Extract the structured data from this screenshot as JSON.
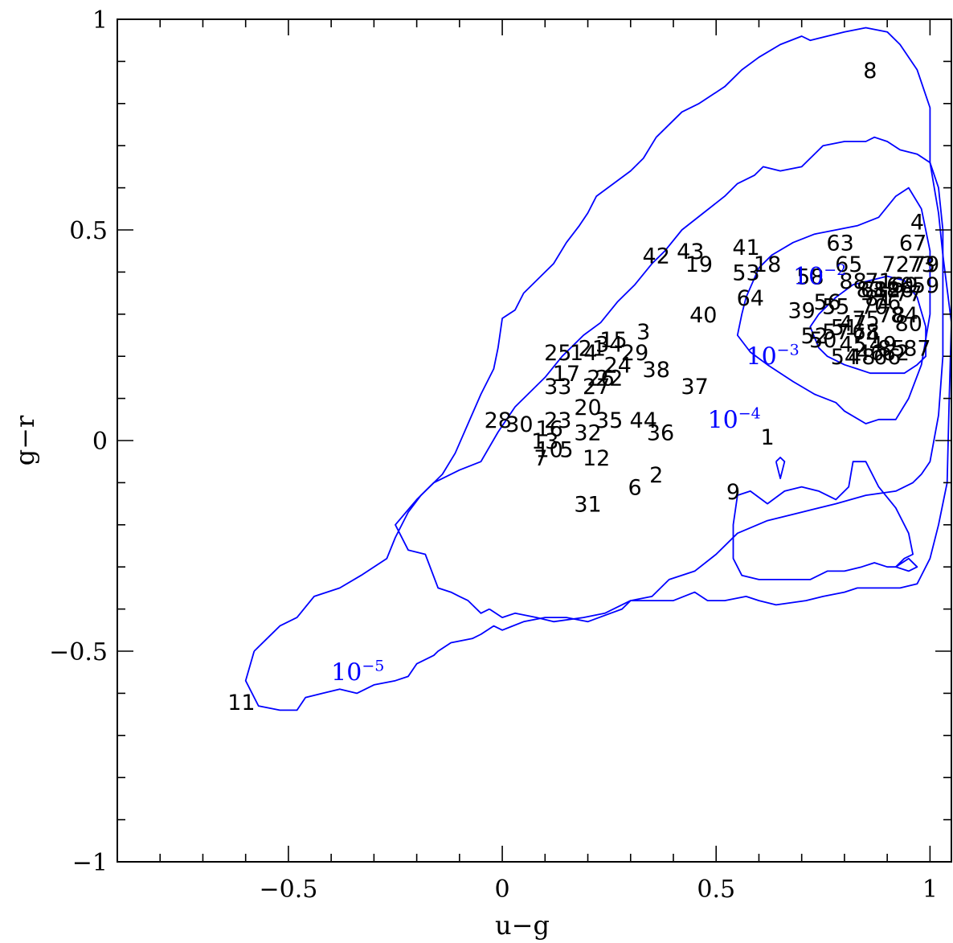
{
  "chart_data": {
    "type": "scatter",
    "xlabel": "u−g",
    "ylabel": "g−r",
    "xlim": [
      -0.9,
      1.05
    ],
    "ylim": [
      -1,
      1
    ],
    "xticks_major": [
      -0.5,
      0,
      0.5,
      1
    ],
    "xtick_labels": [
      "−0.5",
      "0",
      "0.5",
      "1"
    ],
    "yticks_major": [
      -1,
      -0.5,
      0,
      0.5,
      1
    ],
    "ytick_labels": [
      "−1",
      "−0.5",
      "0",
      "0.5",
      "1"
    ],
    "minor_tick_step": 0.1,
    "grid": false,
    "legend": "none",
    "contour_color": "#0000ff",
    "point_color": "#000000",
    "points": [
      {
        "label": "1",
        "x": 0.62,
        "y": 0.01
      },
      {
        "label": "2",
        "x": 0.36,
        "y": -0.08
      },
      {
        "label": "3",
        "x": 0.33,
        "y": 0.26
      },
      {
        "label": "4",
        "x": 0.97,
        "y": 0.52
      },
      {
        "label": "5",
        "x": 0.15,
        "y": -0.02
      },
      {
        "label": "6",
        "x": 0.31,
        "y": -0.11
      },
      {
        "label": "7",
        "x": 0.09,
        "y": -0.04
      },
      {
        "label": "8",
        "x": 0.86,
        "y": 0.88
      },
      {
        "label": "9",
        "x": 0.54,
        "y": -0.12
      },
      {
        "label": "10",
        "x": 0.11,
        "y": -0.02
      },
      {
        "label": "11",
        "x": -0.61,
        "y": -0.62
      },
      {
        "label": "12",
        "x": 0.22,
        "y": -0.04
      },
      {
        "label": "13",
        "x": 0.1,
        "y": 0.0
      },
      {
        "label": "14",
        "x": 0.19,
        "y": 0.21
      },
      {
        "label": "15",
        "x": 0.26,
        "y": 0.24
      },
      {
        "label": "16",
        "x": 0.11,
        "y": 0.03
      },
      {
        "label": "17",
        "x": 0.15,
        "y": 0.16
      },
      {
        "label": "18",
        "x": 0.62,
        "y": 0.42
      },
      {
        "label": "19",
        "x": 0.46,
        "y": 0.42
      },
      {
        "label": "20",
        "x": 0.2,
        "y": 0.08
      },
      {
        "label": "21",
        "x": 0.21,
        "y": 0.22
      },
      {
        "label": "22",
        "x": 0.25,
        "y": 0.15
      },
      {
        "label": "23",
        "x": 0.13,
        "y": 0.05
      },
      {
        "label": "24",
        "x": 0.27,
        "y": 0.18
      },
      {
        "label": "25",
        "x": 0.13,
        "y": 0.21
      },
      {
        "label": "26",
        "x": 0.23,
        "y": 0.15
      },
      {
        "label": "27",
        "x": 0.22,
        "y": 0.13
      },
      {
        "label": "28",
        "x": -0.01,
        "y": 0.05
      },
      {
        "label": "29",
        "x": 0.31,
        "y": 0.21
      },
      {
        "label": "30",
        "x": 0.04,
        "y": 0.04
      },
      {
        "label": "31",
        "x": 0.2,
        "y": -0.15
      },
      {
        "label": "32",
        "x": 0.2,
        "y": 0.02
      },
      {
        "label": "33",
        "x": 0.13,
        "y": 0.13
      },
      {
        "label": "34",
        "x": 0.25,
        "y": 0.23
      },
      {
        "label": "35",
        "x": 0.25,
        "y": 0.05
      },
      {
        "label": "36",
        "x": 0.37,
        "y": 0.02
      },
      {
        "label": "37",
        "x": 0.45,
        "y": 0.13
      },
      {
        "label": "38",
        "x": 0.36,
        "y": 0.17
      },
      {
        "label": "39",
        "x": 0.7,
        "y": 0.31
      },
      {
        "label": "40",
        "x": 0.47,
        "y": 0.3
      },
      {
        "label": "41",
        "x": 0.57,
        "y": 0.46
      },
      {
        "label": "42",
        "x": 0.36,
        "y": 0.44
      },
      {
        "label": "43",
        "x": 0.44,
        "y": 0.45
      },
      {
        "label": "44",
        "x": 0.33,
        "y": 0.05
      },
      {
        "label": "45",
        "x": 0.82,
        "y": 0.23
      },
      {
        "label": "46",
        "x": 0.86,
        "y": 0.21
      },
      {
        "label": "47",
        "x": 0.82,
        "y": 0.28
      },
      {
        "label": "48",
        "x": 0.84,
        "y": 0.2
      },
      {
        "label": "49",
        "x": 0.89,
        "y": 0.23
      },
      {
        "label": "50",
        "x": 0.75,
        "y": 0.24
      },
      {
        "label": "51",
        "x": 0.8,
        "y": 0.27
      },
      {
        "label": "52",
        "x": 0.73,
        "y": 0.25
      },
      {
        "label": "53",
        "x": 0.57,
        "y": 0.4
      },
      {
        "label": "54",
        "x": 0.8,
        "y": 0.2
      },
      {
        "label": "55",
        "x": 0.78,
        "y": 0.32
      },
      {
        "label": "56",
        "x": 0.76,
        "y": 0.33
      },
      {
        "label": "57",
        "x": 0.78,
        "y": 0.26
      },
      {
        "label": "58",
        "x": 0.72,
        "y": 0.39
      },
      {
        "label": "59",
        "x": 0.99,
        "y": 0.37
      },
      {
        "label": "60",
        "x": 0.93,
        "y": 0.37
      },
      {
        "label": "61",
        "x": 0.87,
        "y": 0.36
      },
      {
        "label": "62",
        "x": 0.92,
        "y": 0.21
      },
      {
        "label": "63",
        "x": 0.79,
        "y": 0.47
      },
      {
        "label": "64",
        "x": 0.58,
        "y": 0.34
      },
      {
        "label": "65",
        "x": 0.81,
        "y": 0.42
      },
      {
        "label": "66",
        "x": 0.9,
        "y": 0.2
      },
      {
        "label": "67",
        "x": 0.96,
        "y": 0.47
      },
      {
        "label": "68",
        "x": 0.85,
        "y": 0.26
      },
      {
        "label": "69",
        "x": 0.94,
        "y": 0.37
      },
      {
        "label": "70",
        "x": 0.87,
        "y": 0.32
      },
      {
        "label": "71",
        "x": 0.88,
        "y": 0.38
      },
      {
        "label": "72",
        "x": 0.92,
        "y": 0.42
      },
      {
        "label": "73",
        "x": 0.98,
        "y": 0.42
      },
      {
        "label": "74",
        "x": 0.85,
        "y": 0.25
      },
      {
        "label": "75",
        "x": 0.85,
        "y": 0.29
      },
      {
        "label": "76",
        "x": 0.9,
        "y": 0.33
      },
      {
        "label": "77",
        "x": 0.95,
        "y": 0.35
      },
      {
        "label": "78",
        "x": 0.91,
        "y": 0.3
      },
      {
        "label": "79",
        "x": 0.99,
        "y": 0.42
      },
      {
        "label": "80",
        "x": 0.95,
        "y": 0.28
      },
      {
        "label": "81",
        "x": 0.88,
        "y": 0.34
      },
      {
        "label": "82",
        "x": 0.9,
        "y": 0.36
      },
      {
        "label": "83",
        "x": 0.86,
        "y": 0.36
      },
      {
        "label": "84",
        "x": 0.94,
        "y": 0.3
      },
      {
        "label": "85",
        "x": 0.91,
        "y": 0.22
      },
      {
        "label": "86",
        "x": 0.93,
        "y": 0.36
      },
      {
        "label": "87",
        "x": 0.97,
        "y": 0.22
      },
      {
        "label": "88",
        "x": 0.82,
        "y": 0.38
      }
    ],
    "contours": [
      {
        "level_label": "10⁻⁵",
        "label_base": "10",
        "label_exponent": "−5",
        "label_pos": [
          -0.4,
          -0.57
        ],
        "x": [
          -0.58,
          -0.6,
          -0.57,
          -0.52,
          -0.48,
          -0.46,
          -0.42,
          -0.38,
          -0.34,
          -0.3,
          -0.25,
          -0.22,
          -0.2,
          -0.16,
          -0.15,
          -0.12,
          -0.07,
          -0.05,
          -0.02,
          0.0,
          0.05,
          0.1,
          0.15,
          0.2,
          0.28,
          0.3,
          0.4,
          0.45,
          0.48,
          0.52,
          0.57,
          0.6,
          0.64,
          0.71,
          0.75,
          0.8,
          0.83,
          0.87,
          0.93,
          0.97,
          1.0,
          1.02,
          1.04,
          1.045,
          1.05,
          1.04,
          1.03,
          1.02,
          1.0,
          1.0,
          0.97,
          0.93,
          0.9,
          0.85,
          0.8,
          0.72,
          0.7,
          0.65,
          0.6,
          0.56,
          0.52,
          0.46,
          0.42,
          0.38,
          0.36,
          0.33,
          0.3,
          0.22,
          0.2,
          0.18,
          0.15,
          0.12,
          0.08,
          0.05,
          0.03,
          0.0,
          -0.01,
          -0.02,
          -0.05,
          -0.08,
          -0.11,
          -0.14,
          -0.17,
          -0.19,
          -0.22,
          -0.25,
          -0.27,
          -0.3,
          -0.33,
          -0.38,
          -0.44,
          -0.48,
          -0.52,
          -0.55,
          -0.58
        ],
        "y": [
          -0.5,
          -0.57,
          -0.63,
          -0.64,
          -0.64,
          -0.61,
          -0.6,
          -0.59,
          -0.6,
          -0.58,
          -0.57,
          -0.56,
          -0.53,
          -0.51,
          -0.5,
          -0.48,
          -0.47,
          -0.46,
          -0.44,
          -0.45,
          -0.43,
          -0.42,
          -0.42,
          -0.43,
          -0.4,
          -0.38,
          -0.38,
          -0.36,
          -0.38,
          -0.38,
          -0.37,
          -0.38,
          -0.39,
          -0.38,
          -0.37,
          -0.36,
          -0.35,
          -0.35,
          -0.35,
          -0.34,
          -0.28,
          -0.2,
          -0.1,
          0.1,
          0.28,
          0.36,
          0.44,
          0.54,
          0.66,
          0.79,
          0.88,
          0.94,
          0.97,
          0.98,
          0.97,
          0.95,
          0.96,
          0.94,
          0.91,
          0.88,
          0.84,
          0.8,
          0.78,
          0.74,
          0.72,
          0.67,
          0.64,
          0.58,
          0.54,
          0.51,
          0.47,
          0.42,
          0.38,
          0.35,
          0.31,
          0.29,
          0.22,
          0.17,
          0.11,
          0.04,
          -0.03,
          -0.08,
          -0.11,
          -0.13,
          -0.17,
          -0.23,
          -0.28,
          -0.3,
          -0.32,
          -0.35,
          -0.37,
          -0.42,
          -0.44,
          -0.47,
          -0.5
        ]
      },
      {
        "level_label": "10⁻⁴",
        "label_base": "10",
        "label_exponent": "−4",
        "label_pos": [
          0.48,
          0.03
        ],
        "x": [
          -0.03,
          -0.05,
          -0.08,
          -0.1,
          -0.12,
          -0.15,
          -0.18,
          -0.22,
          -0.25,
          -0.2,
          -0.16,
          -0.1,
          -0.05,
          -0.01,
          0.03,
          0.1,
          0.14,
          0.19,
          0.23,
          0.27,
          0.31,
          0.35,
          0.38,
          0.42,
          0.47,
          0.52,
          0.55,
          0.59,
          0.61,
          0.65,
          0.7,
          0.75,
          0.8,
          0.85,
          0.87,
          0.9,
          0.93,
          0.97,
          1.0,
          1.02,
          1.03,
          1.03,
          1.02,
          1.0,
          0.98,
          0.96,
          0.92,
          0.85,
          0.78,
          0.7,
          0.62,
          0.55,
          0.5,
          0.45,
          0.39,
          0.35,
          0.3,
          0.24,
          0.19,
          0.12,
          0.08,
          0.03,
          0.0,
          -0.03
        ],
        "y": [
          -0.4,
          -0.41,
          -0.38,
          -0.37,
          -0.36,
          -0.35,
          -0.27,
          -0.26,
          -0.2,
          -0.14,
          -0.1,
          -0.07,
          -0.05,
          0.02,
          0.08,
          0.15,
          0.2,
          0.25,
          0.28,
          0.33,
          0.37,
          0.42,
          0.45,
          0.5,
          0.54,
          0.58,
          0.61,
          0.63,
          0.65,
          0.64,
          0.65,
          0.7,
          0.71,
          0.71,
          0.72,
          0.71,
          0.69,
          0.68,
          0.66,
          0.6,
          0.5,
          0.2,
          0.06,
          -0.05,
          -0.08,
          -0.1,
          -0.12,
          -0.13,
          -0.15,
          -0.17,
          -0.19,
          -0.22,
          -0.27,
          -0.31,
          -0.33,
          -0.37,
          -0.38,
          -0.41,
          -0.42,
          -0.43,
          -0.42,
          -0.41,
          -0.42,
          -0.4
        ]
      },
      {
        "level_label": "10⁻³",
        "label_base": "10",
        "label_exponent": "−3",
        "label_pos": [
          0.57,
          0.18
        ],
        "x": [
          0.57,
          0.6,
          0.63,
          0.68,
          0.73,
          0.78,
          0.83,
          0.88,
          0.92,
          0.95,
          0.98,
          1.0,
          1.0,
          0.98,
          0.95,
          0.92,
          0.88,
          0.85,
          0.8,
          0.78,
          0.73,
          0.68,
          0.62,
          0.58,
          0.55,
          0.56,
          0.57
        ],
        "y": [
          0.34,
          0.41,
          0.44,
          0.47,
          0.49,
          0.5,
          0.51,
          0.53,
          0.58,
          0.6,
          0.55,
          0.45,
          0.3,
          0.18,
          0.1,
          0.05,
          0.05,
          0.04,
          0.07,
          0.09,
          0.11,
          0.14,
          0.18,
          0.21,
          0.25,
          0.3,
          0.34
        ]
      },
      {
        "level_label": "10⁻²",
        "label_base": "10",
        "label_exponent": "−2",
        "label_pos": [
          0.68,
          0.37
        ],
        "x": [
          0.74,
          0.78,
          0.82,
          0.86,
          0.9,
          0.94,
          0.97,
          0.99,
          0.99,
          0.97,
          0.94,
          0.9,
          0.86,
          0.83,
          0.8,
          0.76,
          0.74,
          0.72,
          0.74
        ],
        "y": [
          0.3,
          0.34,
          0.37,
          0.38,
          0.39,
          0.38,
          0.34,
          0.27,
          0.2,
          0.18,
          0.16,
          0.16,
          0.16,
          0.17,
          0.18,
          0.2,
          0.22,
          0.27,
          0.3
        ]
      },
      {
        "level_label": "",
        "label_base": "",
        "label_exponent": "",
        "label_pos": [
          0.62,
          -0.1
        ],
        "x": [
          0.55,
          0.58,
          0.62,
          0.66,
          0.7,
          0.74,
          0.78,
          0.81,
          0.82,
          0.85,
          0.88,
          0.92,
          0.95,
          0.96,
          0.94,
          0.92,
          0.9,
          0.87,
          0.84,
          0.8,
          0.76,
          0.72,
          0.68,
          0.65,
          0.62,
          0.6,
          0.56,
          0.54,
          0.54,
          0.55
        ],
        "y": [
          -0.13,
          -0.12,
          -0.15,
          -0.12,
          -0.11,
          -0.12,
          -0.14,
          -0.11,
          -0.05,
          -0.05,
          -0.11,
          -0.16,
          -0.22,
          -0.27,
          -0.28,
          -0.3,
          -0.3,
          -0.29,
          -0.3,
          -0.31,
          -0.31,
          -0.33,
          -0.33,
          -0.33,
          -0.33,
          -0.33,
          -0.32,
          -0.28,
          -0.2,
          -0.13
        ]
      },
      {
        "level_label": "",
        "label_base": "",
        "label_exponent": "",
        "label_pos": [
          0.64,
          -0.08
        ],
        "x": [
          0.64,
          0.65,
          0.66,
          0.65,
          0.64
        ],
        "y": [
          -0.05,
          -0.09,
          -0.05,
          -0.04,
          -0.05
        ]
      },
      {
        "level_label": "",
        "label_base": "",
        "label_exponent": "",
        "label_pos": [
          0.92,
          -0.3
        ],
        "x": [
          0.92,
          0.95,
          0.97,
          0.95,
          0.92
        ],
        "y": [
          -0.3,
          -0.28,
          -0.3,
          -0.31,
          -0.3
        ]
      }
    ]
  }
}
